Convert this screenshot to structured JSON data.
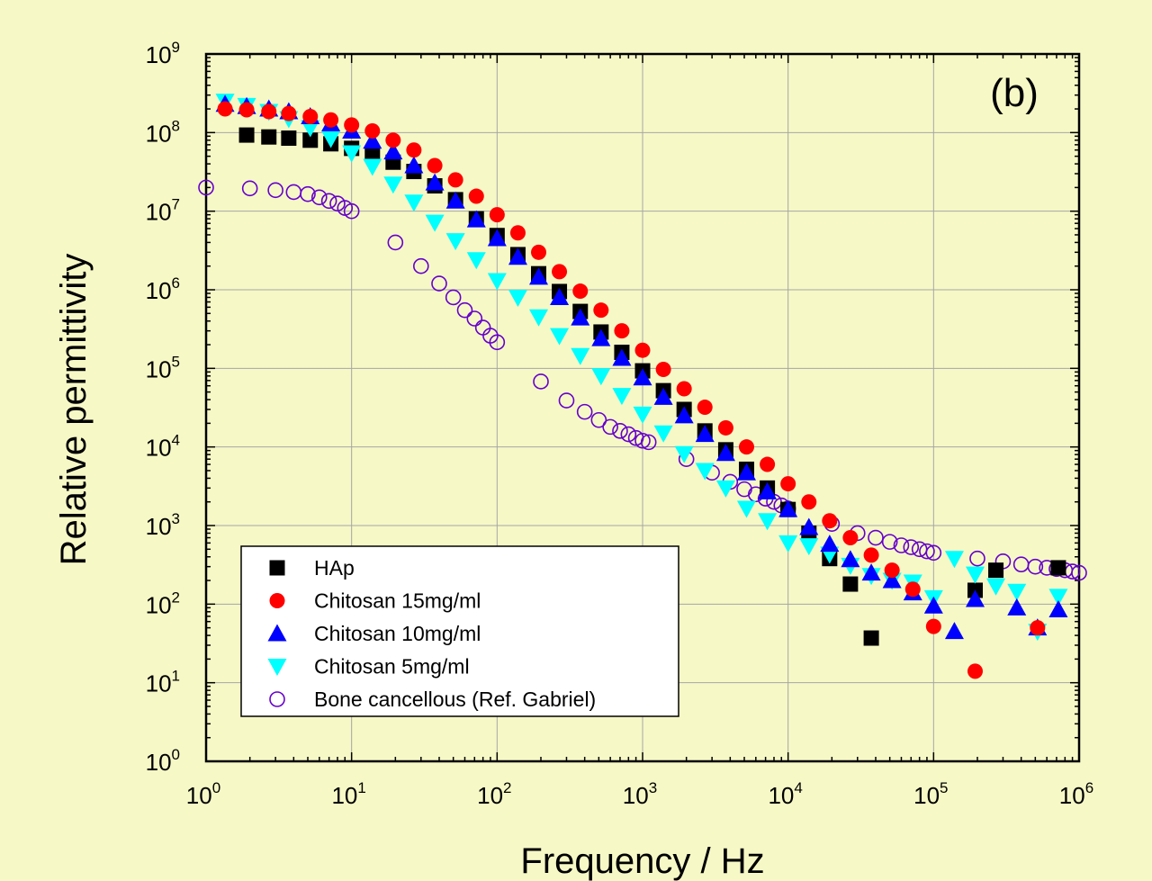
{
  "chart_data": {
    "type": "scatter",
    "panel_label": "(b)",
    "xlabel": "Frequency / Hz",
    "ylabel": "Relative permittivity",
    "x_scale": "log",
    "y_scale": "log",
    "xlim": [
      1,
      1000000
    ],
    "ylim": [
      1,
      1000000000
    ],
    "grid": true,
    "legend_position": "bottom-left",
    "x_ticks": [
      {
        "base": "10",
        "exp": "0"
      },
      {
        "base": "10",
        "exp": "1"
      },
      {
        "base": "10",
        "exp": "2"
      },
      {
        "base": "10",
        "exp": "3"
      },
      {
        "base": "10",
        "exp": "4"
      },
      {
        "base": "10",
        "exp": "5"
      },
      {
        "base": "10",
        "exp": "6"
      }
    ],
    "y_ticks": [
      {
        "base": "10",
        "exp": "0"
      },
      {
        "base": "10",
        "exp": "1"
      },
      {
        "base": "10",
        "exp": "2"
      },
      {
        "base": "10",
        "exp": "3"
      },
      {
        "base": "10",
        "exp": "4"
      },
      {
        "base": "10",
        "exp": "5"
      },
      {
        "base": "10",
        "exp": "6"
      },
      {
        "base": "10",
        "exp": "7"
      },
      {
        "base": "10",
        "exp": "8"
      },
      {
        "base": "10",
        "exp": "9"
      }
    ],
    "series": [
      {
        "name": "HAp",
        "marker": "square",
        "color": "#000000",
        "x": [
          1.9,
          2.7,
          3.7,
          5.2,
          7.2,
          10,
          13.9,
          19.3,
          26.8,
          37.3,
          51.8,
          72,
          100,
          139,
          193,
          268,
          373,
          518,
          720,
          1000,
          1390,
          1930,
          2680,
          3730,
          5180,
          7200,
          10000,
          13900,
          19300,
          26800,
          37300,
          193000,
          268000,
          720000
        ],
        "y": [
          93000000,
          88000000,
          85000000,
          80000000,
          72000000,
          63000000,
          53000000,
          42000000,
          32000000,
          21000000,
          14000000,
          8000000,
          4900000,
          2800000,
          1600000,
          950000,
          530000,
          290000,
          160000,
          93000,
          52000,
          30000,
          16000,
          9200,
          5200,
          3000,
          1600,
          800,
          380,
          180,
          37,
          150,
          270,
          290
        ]
      },
      {
        "name": "Chitosan 15mg/ml",
        "marker": "circle",
        "color": "#ff0000",
        "x": [
          1.35,
          1.9,
          2.7,
          3.7,
          5.2,
          7.2,
          10,
          13.9,
          19.3,
          26.8,
          37.3,
          51.8,
          72,
          100,
          139,
          193,
          268,
          373,
          518,
          720,
          1000,
          1390,
          1930,
          2680,
          3730,
          5180,
          7200,
          10000,
          13900,
          19300,
          26800,
          37300,
          51800,
          72000,
          100000,
          193000,
          518000
        ],
        "y": [
          200000000,
          195000000,
          185000000,
          175000000,
          160000000,
          145000000,
          125000000,
          105000000,
          80000000,
          60000000,
          38000000,
          25000000,
          15500000,
          9000000,
          5300000,
          3000000,
          1700000,
          960000,
          550000,
          300000,
          170000,
          97000,
          55000,
          32000,
          17500,
          10000,
          6000,
          3400,
          2000,
          1150,
          700,
          420,
          270,
          155,
          52,
          14,
          50
        ]
      },
      {
        "name": "Chitosan 10mg/ml",
        "marker": "triangle-up",
        "color": "#0000ff",
        "x": [
          1.35,
          1.9,
          2.7,
          3.7,
          5.2,
          7.2,
          10,
          13.9,
          19.3,
          26.8,
          37.3,
          51.8,
          72,
          100,
          139,
          193,
          268,
          373,
          518,
          720,
          1000,
          1390,
          1930,
          2680,
          3730,
          5180,
          7200,
          10000,
          13900,
          19300,
          26800,
          37300,
          51800,
          72000,
          100000,
          139000,
          193000,
          373000,
          518000,
          720000
        ],
        "y": [
          230000000,
          215000000,
          200000000,
          185000000,
          160000000,
          130000000,
          105000000,
          78000000,
          57000000,
          38000000,
          23000000,
          13500000,
          7800000,
          4500000,
          2600000,
          1450000,
          800000,
          440000,
          240000,
          135000,
          76000,
          43000,
          25000,
          14500,
          8300,
          4700,
          2700,
          1600,
          950,
          580,
          370,
          250,
          200,
          140,
          95,
          45,
          115,
          90,
          50,
          85
        ]
      },
      {
        "name": "Chitosan 5mg/ml",
        "marker": "triangle-down",
        "color": "#00ffff",
        "x": [
          1.35,
          1.9,
          2.7,
          3.7,
          5.2,
          7.2,
          10,
          13.9,
          19.3,
          26.8,
          37.3,
          51.8,
          72,
          100,
          139,
          193,
          268,
          373,
          518,
          720,
          1000,
          1390,
          1930,
          2680,
          3730,
          5180,
          7200,
          10000,
          13900,
          19300,
          26800,
          37300,
          51800,
          72000,
          100000,
          139000,
          193000,
          268000,
          373000,
          518000,
          720000
        ],
        "y": [
          250000000,
          220000000,
          185000000,
          150000000,
          115000000,
          84000000,
          55000000,
          37000000,
          22000000,
          13000000,
          7200000,
          4200000,
          2400000,
          1300000,
          800000,
          450000,
          260000,
          145000,
          80000,
          45000,
          26000,
          15000,
          8200,
          5000,
          3000,
          1650,
          1150,
          600,
          550,
          430,
          310,
          230,
          200,
          190,
          120,
          380,
          240,
          170,
          145,
          45,
          125
        ]
      },
      {
        "name": "Bone cancellous (Ref. Gabriel)",
        "marker": "open-circle",
        "color": "#6600cc",
        "x": [
          1,
          2,
          3,
          4,
          5,
          6,
          7,
          8,
          9,
          10,
          20,
          30,
          40,
          50,
          60,
          70,
          80,
          90,
          100,
          200,
          300,
          400,
          500,
          600,
          700,
          800,
          900,
          1000,
          1100,
          2000,
          3000,
          4000,
          5000,
          6000,
          7000,
          8000,
          9000,
          10000,
          20000,
          30000,
          40000,
          50000,
          60000,
          70000,
          80000,
          90000,
          100000,
          200000,
          300000,
          400000,
          500000,
          600000,
          700000,
          800000,
          900000,
          1000000
        ],
        "y": [
          20000000,
          19500000,
          18500000,
          17500000,
          16500000,
          15000000,
          13500000,
          12500000,
          11000000,
          10000000,
          4000000,
          2000000,
          1200000,
          800000,
          550000,
          430000,
          330000,
          260000,
          215000,
          68000,
          39000,
          28000,
          22000,
          18000,
          16000,
          14500,
          13000,
          12000,
          11500,
          7000,
          4700,
          3600,
          2900,
          2500,
          2200,
          2000,
          1800,
          1650,
          1050,
          800,
          700,
          620,
          560,
          530,
          500,
          470,
          450,
          380,
          350,
          320,
          300,
          290,
          280,
          270,
          260,
          250
        ]
      }
    ]
  }
}
